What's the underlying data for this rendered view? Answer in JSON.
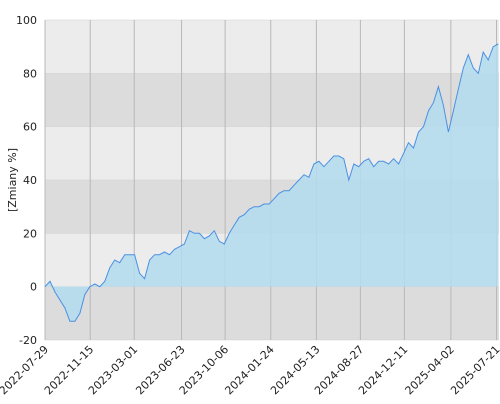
{
  "chart_data": {
    "type": "area",
    "y_label": "[Zmiany %]",
    "x": [
      "2022-07-29",
      "2022-08-10",
      "2022-08-22",
      "2022-09-03",
      "2022-09-15",
      "2022-09-27",
      "2022-10-09",
      "2022-10-21",
      "2022-11-02",
      "2022-11-14",
      "2022-11-26",
      "2022-12-08",
      "2022-12-20",
      "2023-01-01",
      "2023-01-13",
      "2023-01-25",
      "2023-02-06",
      "2023-02-18",
      "2023-03-02",
      "2023-03-14",
      "2023-03-26",
      "2023-04-07",
      "2023-04-19",
      "2023-05-01",
      "2023-05-13",
      "2023-05-25",
      "2023-06-06",
      "2023-06-18",
      "2023-06-30",
      "2023-07-12",
      "2023-07-24",
      "2023-08-05",
      "2023-08-17",
      "2023-08-29",
      "2023-09-10",
      "2023-09-22",
      "2023-10-04",
      "2023-10-16",
      "2023-10-28",
      "2023-11-09",
      "2023-11-21",
      "2023-12-03",
      "2023-12-15",
      "2023-12-27",
      "2024-01-08",
      "2024-01-20",
      "2024-02-01",
      "2024-02-13",
      "2024-02-25",
      "2024-03-08",
      "2024-03-20",
      "2024-04-01",
      "2024-04-13",
      "2024-04-25",
      "2024-05-07",
      "2024-05-19",
      "2024-05-31",
      "2024-06-12",
      "2024-06-24",
      "2024-07-06",
      "2024-07-18",
      "2024-07-30",
      "2024-08-11",
      "2024-08-23",
      "2024-09-04",
      "2024-09-16",
      "2024-09-28",
      "2024-10-10",
      "2024-10-22",
      "2024-11-03",
      "2024-11-15",
      "2024-11-27",
      "2024-12-09",
      "2024-12-21",
      "2025-01-02",
      "2025-01-14",
      "2025-01-26",
      "2025-02-07",
      "2025-02-19",
      "2025-03-03",
      "2025-03-15",
      "2025-03-27",
      "2025-04-08",
      "2025-04-20",
      "2025-05-02",
      "2025-05-14",
      "2025-05-26",
      "2025-06-07",
      "2025-06-19",
      "2025-07-01",
      "2025-07-13",
      "2025-07-25"
    ],
    "series": [
      {
        "color": "#4a90e2",
        "fill": "#b3dcef",
        "values": [
          0,
          2,
          -2,
          -5,
          -8,
          -13,
          -13,
          -10,
          -3,
          0,
          1,
          0,
          2,
          7,
          10,
          9,
          12,
          12,
          12,
          5,
          3,
          10,
          12,
          12,
          13,
          12,
          14,
          15,
          16,
          21,
          20,
          20,
          18,
          19,
          21,
          17,
          16,
          20,
          23,
          26,
          27,
          29,
          30,
          30,
          31,
          31,
          33,
          35,
          36,
          36,
          38,
          40,
          42,
          41,
          46,
          47,
          45,
          47,
          49,
          49,
          48,
          40,
          46,
          45,
          47,
          48,
          45,
          47,
          47,
          46,
          48,
          46,
          50,
          54,
          52,
          58,
          60,
          66,
          69,
          75,
          68,
          58,
          66,
          74,
          82,
          87,
          82,
          80,
          88,
          85,
          90,
          91
        ]
      }
    ],
    "xlim": [
      "2022-07-29",
      "2025-07-27"
    ],
    "xticks": [
      "2022-07-29",
      "2022-11-15",
      "2023-03-01",
      "2023-06-23",
      "2023-10-06",
      "2024-01-24",
      "2024-05-13",
      "2024-08-27",
      "2024-12-11",
      "2025-04-02",
      "2025-07-21"
    ],
    "ylim": [
      -20,
      100
    ],
    "yticks": [
      -20,
      0,
      20,
      40,
      60,
      80,
      100
    ],
    "grid": true
  }
}
